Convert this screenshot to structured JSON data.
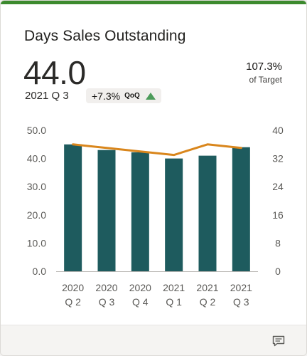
{
  "card": {
    "title": "Days Sales Outstanding",
    "value": "44.0",
    "period": "2021 Q 3",
    "change": "+7.3%",
    "change_label": "QoQ",
    "target_value": "107.3%",
    "target_label": "of Target"
  },
  "colors": {
    "bar": "#1e5b5e",
    "line": "#d9861c",
    "accent": "#3c8a2e",
    "up": "#4c9b5a"
  },
  "icons": {
    "trend": "triangle-up-icon",
    "footer": "comment-icon"
  },
  "chart_data": {
    "type": "bar",
    "categories": [
      [
        "2020",
        "Q 2"
      ],
      [
        "2020",
        "Q 3"
      ],
      [
        "2020",
        "Q 4"
      ],
      [
        "2021",
        "Q 1"
      ],
      [
        "2021",
        "Q 2"
      ],
      [
        "2021",
        "Q 3"
      ]
    ],
    "series": [
      {
        "type": "bar",
        "axis": "left",
        "values": [
          45.0,
          43.0,
          42.2,
          40.0,
          41.0,
          44.0
        ]
      },
      {
        "type": "line",
        "axis": "right",
        "values": [
          36.0,
          35.0,
          34.0,
          33.0,
          36.0,
          35.0
        ]
      }
    ],
    "y_left": {
      "min": 0,
      "max": 50,
      "ticks": [
        "0.0",
        "10.0",
        "20.0",
        "30.0",
        "40.0",
        "50.0"
      ]
    },
    "y_right": {
      "min": 0,
      "max": 40,
      "ticks": [
        "0",
        "8",
        "16",
        "24",
        "32",
        "40"
      ]
    }
  }
}
